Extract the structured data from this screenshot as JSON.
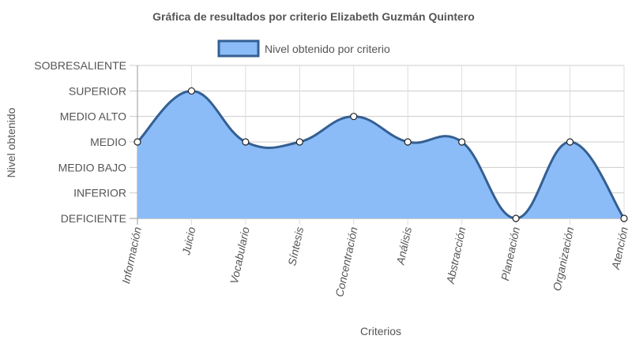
{
  "chart_data": {
    "type": "area",
    "title": "Gráfica de resultados por criterio Elizabeth Guzmán Quintero",
    "xlabel": "Criterios",
    "ylabel": "Nivel obtenido",
    "categories": [
      "Información",
      "Juicio",
      "Vocabulario",
      "Síntesis",
      "Concentración",
      "Análisis",
      "Abstracción",
      "Planeación",
      "Organización",
      "Atención"
    ],
    "y_levels": [
      "DEFICIENTE",
      "INFERIOR",
      "MEDIO BAJO",
      "MEDIO",
      "MEDIO ALTO",
      "SUPERIOR",
      "SOBRESALIENTE"
    ],
    "series": [
      {
        "name": "Nivel obtenido por criterio",
        "values": [
          "MEDIO",
          "SUPERIOR",
          "MEDIO",
          "MEDIO",
          "MEDIO ALTO",
          "MEDIO",
          "MEDIO",
          "DEFICIENTE",
          "MEDIO",
          "DEFICIENTE"
        ],
        "fill_color": "#8bbcf8",
        "line_color": "#345f92"
      }
    ],
    "grid": true,
    "legend_position": "top"
  }
}
